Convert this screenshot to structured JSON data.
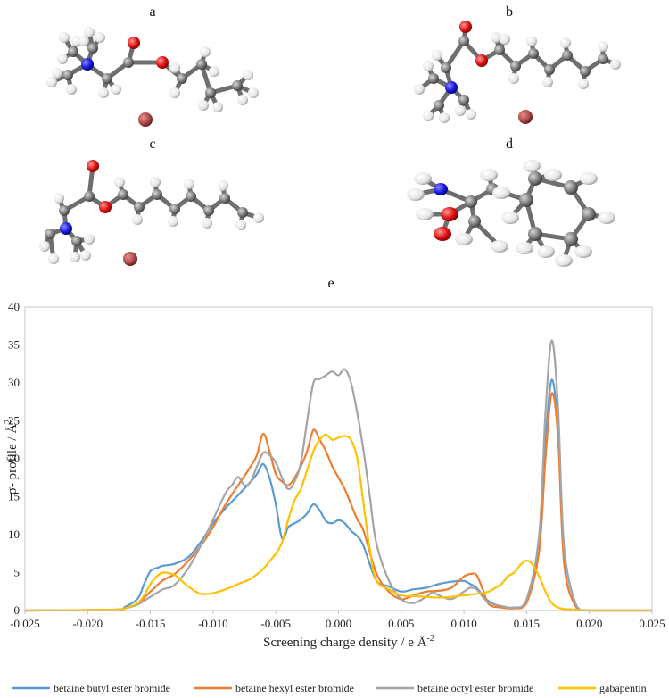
{
  "panels": {
    "a": "a",
    "b": "b",
    "c": "c",
    "d": "d",
    "e": "e"
  },
  "legend_position": "bottom",
  "chart_data": {
    "type": "line",
    "title": "",
    "xlabel": "Screening charge density / e Å",
    "xlabel_sup": "-2",
    "ylabel": "σ- profile / Å",
    "ylabel_sup": "2",
    "xlim": [
      -0.025,
      0.025
    ],
    "ylim": [
      0,
      40
    ],
    "xticks": [
      "-0.025",
      "-0.020",
      "-0.015",
      "-0.010",
      "-0.005",
      "0.000",
      "0.005",
      "0.010",
      "0.015",
      "0.020",
      "0.025"
    ],
    "yticks": [
      "0",
      "5",
      "10",
      "15",
      "20",
      "25",
      "30",
      "35",
      "40"
    ],
    "grid": false,
    "series": [
      {
        "name": "betaine butyl ester bromide",
        "color": "#5b9bd5",
        "x": [
          -0.025,
          -0.018,
          -0.017,
          -0.016,
          -0.0155,
          -0.015,
          -0.0145,
          -0.014,
          -0.0135,
          -0.013,
          -0.012,
          -0.011,
          -0.01,
          -0.009,
          -0.008,
          -0.007,
          -0.0065,
          -0.006,
          -0.0055,
          -0.005,
          -0.0045,
          -0.004,
          -0.0035,
          -0.003,
          -0.0025,
          -0.002,
          -0.0015,
          -0.001,
          -0.0005,
          0.0,
          0.0005,
          0.001,
          0.0015,
          0.002,
          0.003,
          0.004,
          0.005,
          0.006,
          0.007,
          0.008,
          0.009,
          0.01,
          0.0105,
          0.011,
          0.0115,
          0.012,
          0.013,
          0.014,
          0.015,
          0.016,
          0.0165,
          0.017,
          0.0175,
          0.018,
          0.019,
          0.02,
          0.025
        ],
        "y": [
          0,
          0.1,
          0.5,
          1.6,
          3.5,
          5.2,
          5.6,
          5.9,
          6.0,
          6.2,
          7.0,
          9.0,
          11.5,
          13.5,
          15.2,
          17.0,
          18.0,
          19.3,
          17.5,
          14.0,
          9.5,
          11.0,
          11.5,
          12.0,
          12.8,
          14.0,
          13.2,
          11.8,
          11.5,
          11.9,
          11.5,
          10.5,
          9.8,
          8.5,
          4.0,
          3.2,
          2.5,
          2.8,
          3.0,
          3.5,
          3.8,
          3.9,
          3.5,
          3.0,
          2.0,
          1.2,
          0.5,
          0.4,
          1.2,
          8.0,
          22.0,
          30.4,
          24.0,
          8.0,
          0.5,
          0,
          0
        ]
      },
      {
        "name": "betaine hexyl ester bromide",
        "color": "#ed7d31",
        "x": [
          -0.025,
          -0.018,
          -0.017,
          -0.016,
          -0.015,
          -0.014,
          -0.0135,
          -0.013,
          -0.012,
          -0.011,
          -0.01,
          -0.009,
          -0.008,
          -0.007,
          -0.0065,
          -0.006,
          -0.0055,
          -0.005,
          -0.0045,
          -0.004,
          -0.0035,
          -0.003,
          -0.0025,
          -0.002,
          -0.0015,
          -0.001,
          -0.0005,
          0.0,
          0.0005,
          0.001,
          0.0015,
          0.002,
          0.003,
          0.004,
          0.005,
          0.006,
          0.007,
          0.008,
          0.009,
          0.01,
          0.0105,
          0.011,
          0.0115,
          0.012,
          0.013,
          0.014,
          0.015,
          0.016,
          0.0165,
          0.017,
          0.0175,
          0.018,
          0.019,
          0.02,
          0.025
        ],
        "y": [
          0,
          0.1,
          0.3,
          0.9,
          2.5,
          4.0,
          4.4,
          4.9,
          6.5,
          8.5,
          11.0,
          14.0,
          16.5,
          19.0,
          20.5,
          23.3,
          21.0,
          18.0,
          17.0,
          16.5,
          17.5,
          19.0,
          21.0,
          23.8,
          22.5,
          21.0,
          19.0,
          17.5,
          16.0,
          14.0,
          12.0,
          10.5,
          5.0,
          2.5,
          1.5,
          2.0,
          2.5,
          2.6,
          3.0,
          4.5,
          4.8,
          4.7,
          2.8,
          0.8,
          0.4,
          0.3,
          1.0,
          8.0,
          20.0,
          28.6,
          23.0,
          6.0,
          0.3,
          0,
          0
        ]
      },
      {
        "name": "betaine octyl ester bromide",
        "color": "#a5a5a5",
        "x": [
          -0.025,
          -0.018,
          -0.017,
          -0.016,
          -0.015,
          -0.014,
          -0.0135,
          -0.013,
          -0.012,
          -0.011,
          -0.01,
          -0.009,
          -0.0085,
          -0.008,
          -0.0075,
          -0.007,
          -0.0065,
          -0.006,
          -0.0055,
          -0.005,
          -0.0045,
          -0.004,
          -0.0035,
          -0.003,
          -0.0025,
          -0.002,
          -0.0015,
          -0.001,
          -0.0005,
          0.0,
          0.0005,
          0.001,
          0.0015,
          0.002,
          0.0025,
          0.003,
          0.004,
          0.005,
          0.006,
          0.007,
          0.0075,
          0.008,
          0.009,
          0.01,
          0.0105,
          0.011,
          0.0115,
          0.012,
          0.013,
          0.014,
          0.015,
          0.016,
          0.0165,
          0.017,
          0.0175,
          0.018,
          0.019,
          0.02,
          0.025
        ],
        "y": [
          0,
          0.1,
          0.3,
          0.8,
          1.8,
          2.8,
          3.0,
          3.5,
          5.5,
          8.5,
          12.0,
          15.5,
          16.5,
          17.6,
          16.5,
          17.0,
          19.0,
          20.8,
          20.5,
          19.5,
          17.5,
          16.0,
          17.0,
          19.5,
          25.0,
          30.0,
          30.5,
          31.0,
          31.5,
          31.0,
          31.8,
          30.0,
          26.0,
          21.0,
          15.0,
          9.0,
          4.0,
          1.5,
          1.0,
          1.8,
          2.4,
          2.0,
          1.5,
          2.5,
          3.0,
          2.8,
          1.8,
          1.0,
          0.6,
          0.4,
          1.5,
          10.0,
          26.0,
          35.6,
          27.0,
          8.0,
          0.5,
          0,
          0
        ]
      },
      {
        "name": "gabapentin",
        "color": "#ffc000",
        "x": [
          -0.025,
          -0.018,
          -0.017,
          -0.016,
          -0.0155,
          -0.015,
          -0.0145,
          -0.014,
          -0.0135,
          -0.013,
          -0.012,
          -0.011,
          -0.01,
          -0.009,
          -0.008,
          -0.007,
          -0.006,
          -0.0055,
          -0.005,
          -0.0045,
          -0.004,
          -0.0035,
          -0.003,
          -0.0025,
          -0.002,
          -0.0015,
          -0.001,
          -0.0005,
          0.0,
          0.0005,
          0.001,
          0.0015,
          0.002,
          0.0025,
          0.003,
          0.004,
          0.005,
          0.006,
          0.007,
          0.008,
          0.009,
          0.01,
          0.011,
          0.012,
          0.0125,
          0.013,
          0.0135,
          0.014,
          0.0145,
          0.015,
          0.0155,
          0.016,
          0.0165,
          0.017,
          0.0175,
          0.018,
          0.019,
          0.02,
          0.025
        ],
        "y": [
          0,
          0.1,
          0.3,
          1.0,
          2.0,
          3.5,
          4.5,
          5.0,
          4.9,
          4.6,
          3.2,
          2.2,
          2.3,
          2.8,
          3.5,
          4.2,
          5.5,
          6.5,
          7.5,
          9.0,
          12.0,
          14.5,
          16.0,
          18.5,
          21.0,
          22.5,
          23.2,
          22.5,
          22.8,
          23.0,
          22.5,
          20.0,
          14.0,
          8.0,
          4.0,
          2.8,
          2.0,
          1.9,
          1.8,
          1.7,
          1.8,
          2.0,
          2.2,
          2.5,
          3.0,
          3.5,
          4.5,
          5.0,
          6.0,
          6.6,
          6.0,
          4.5,
          2.5,
          1.0,
          0.4,
          0.2,
          0.1,
          0,
          0
        ]
      }
    ]
  }
}
